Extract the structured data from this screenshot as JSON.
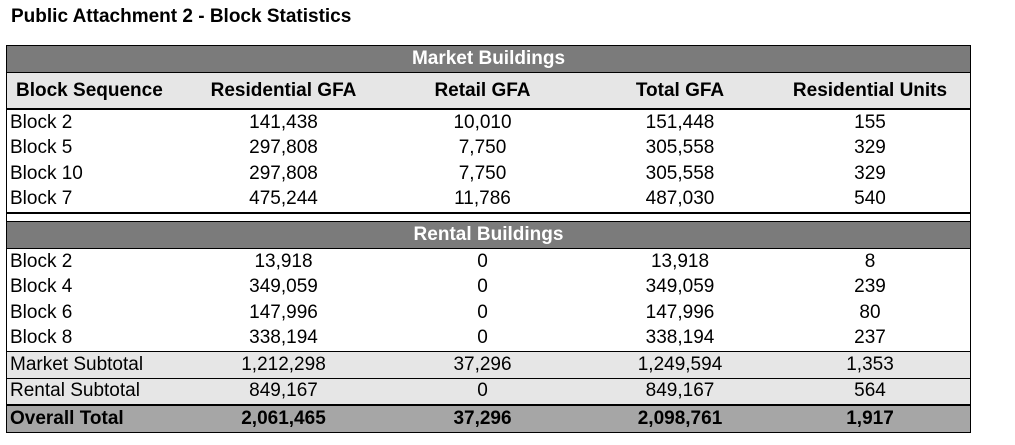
{
  "title": "Public Attachment 2 - Block Statistics",
  "market_header": "Market Buildings",
  "rental_header": "Rental Buildings",
  "columns": [
    "Block Sequence",
    "Residential GFA",
    "Retail GFA",
    "Total GFA",
    "Residential Units"
  ],
  "market_rows": [
    [
      "Block 2",
      "141,438",
      "10,010",
      "151,448",
      "155"
    ],
    [
      "Block 5",
      "297,808",
      "7,750",
      "305,558",
      "329"
    ],
    [
      "Block 10",
      "297,808",
      "7,750",
      "305,558",
      "329"
    ],
    [
      "Block 7",
      "475,244",
      "11,786",
      "487,030",
      "540"
    ]
  ],
  "rental_rows": [
    [
      "Block 2",
      "13,918",
      "0",
      "13,918",
      "8"
    ],
    [
      "Block 4",
      "349,059",
      "0",
      "349,059",
      "239"
    ],
    [
      "Block 6",
      "147,996",
      "0",
      "147,996",
      "80"
    ],
    [
      "Block 8",
      "338,194",
      "0",
      "338,194",
      "237"
    ]
  ],
  "market_subtotal": [
    "Market Subtotal",
    "1,212,298",
    "37,296",
    "1,249,594",
    "1,353"
  ],
  "rental_subtotal": [
    "Rental Subtotal",
    "849,167",
    "0",
    "849,167",
    "564"
  ],
  "overall_total": [
    "Overall Total",
    "2,061,465",
    "37,296",
    "2,098,761",
    "1,917"
  ],
  "colors": {
    "band": "#7b7b7b",
    "header": "#e6e6e6",
    "subtotal": "#e6e6e6",
    "total": "#a6a6a6"
  }
}
